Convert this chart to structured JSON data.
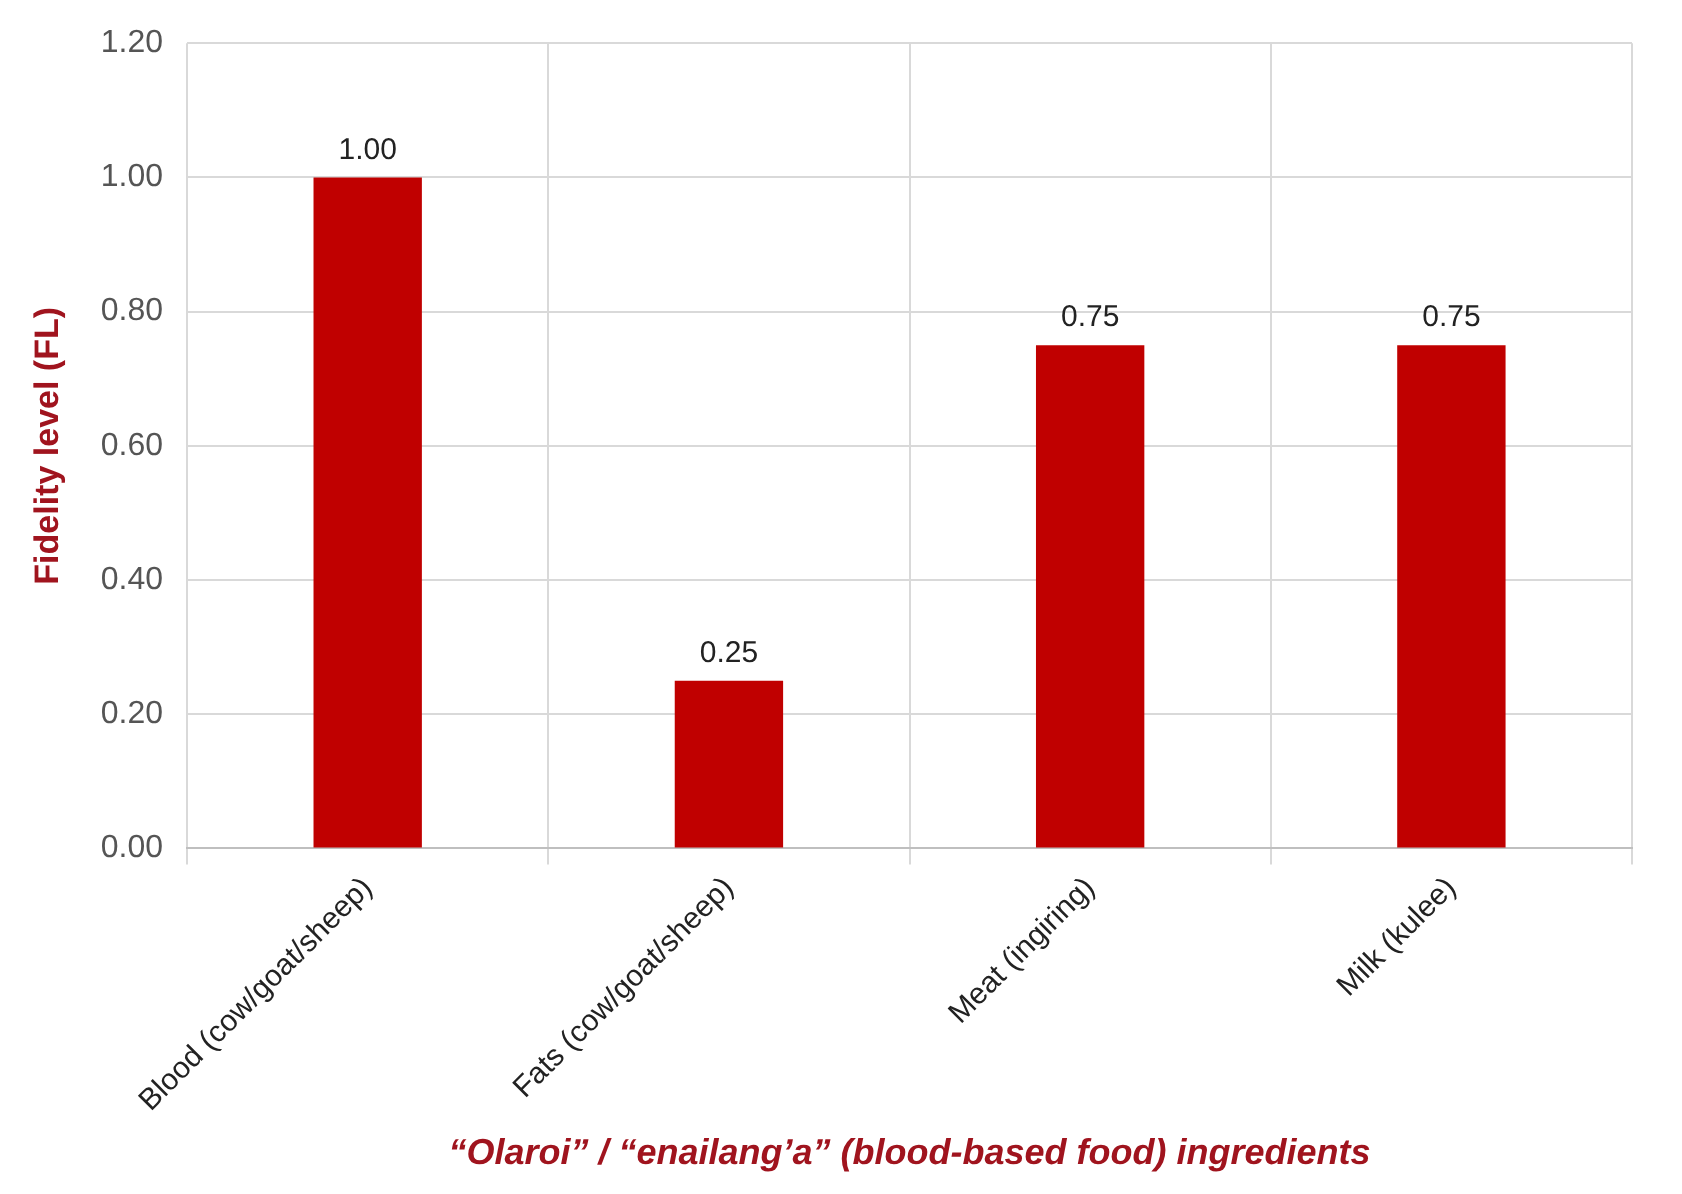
{
  "chart_data": {
    "type": "bar",
    "xlabel": "“Olaroi” / “enailang’a” (blood-based food) ingredients",
    "ylabel": "Fidelity level (FL)",
    "categories": [
      "Blood (cow/goat/sheep)",
      "Fats (cow/goat/sheep)",
      "Meat (ingiring)",
      "Milk (kulee)"
    ],
    "values": [
      1.0,
      0.25,
      0.75,
      0.75
    ],
    "value_labels": [
      "1.00",
      "0.25",
      "0.75",
      "0.75"
    ],
    "color": "#c00000",
    "ylim": [
      0,
      1.2
    ],
    "yticks": [
      {
        "value": 0,
        "label": "0.00"
      },
      {
        "value": 0.2,
        "label": "0.20"
      },
      {
        "value": 0.4,
        "label": "0.40"
      },
      {
        "value": 0.6,
        "label": "0.60"
      },
      {
        "value": 0.8,
        "label": "0.80"
      },
      {
        "value": 1.0,
        "label": "1.00"
      },
      {
        "value": 1.2,
        "label": "1.20"
      }
    ],
    "grid": true
  }
}
